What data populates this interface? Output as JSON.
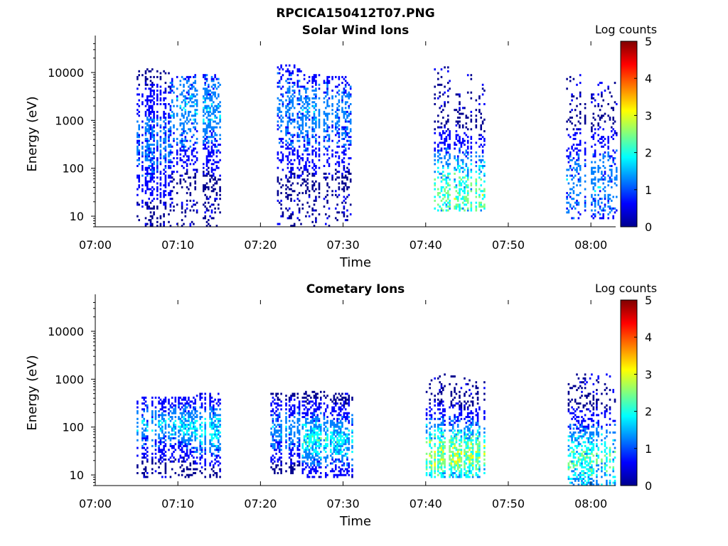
{
  "figure_title": "RPCICA150412T07.PNG",
  "colormap": [
    "#00008f",
    "#0000ff",
    "#0080ff",
    "#00ffff",
    "#80ff80",
    "#ffff00",
    "#ff8000",
    "#ff0000",
    "#800000"
  ],
  "chart_data": [
    {
      "type": "heatmap",
      "title": "Solar Wind Ions",
      "xlabel": "Time",
      "ylabel": "Energy (eV)",
      "y_scale": "log",
      "ylim": [
        6,
        45000
      ],
      "xlim": [
        "07:00",
        "08:03"
      ],
      "x_tick_labels": [
        "07:00",
        "07:10",
        "07:20",
        "07:30",
        "07:40",
        "07:50",
        "08:00"
      ],
      "y_tick_labels": [
        "10",
        "100",
        "1000",
        "10000"
      ],
      "y_tick_values": [
        10,
        100,
        1000,
        10000
      ],
      "colorbar": {
        "label": "Log counts",
        "range": [
          0,
          5
        ],
        "tick_labels": [
          "0",
          "1",
          "2",
          "3",
          "4",
          "5"
        ]
      },
      "clusters": [
        {
          "t_start": "07:05",
          "t_end": "07:09",
          "e_min": 6,
          "e_max": 12000,
          "peak_energy": 300,
          "peak_log_counts": 1.3,
          "density": 0.55
        },
        {
          "t_start": "07:09",
          "t_end": "07:12",
          "e_min": 6,
          "e_max": 8000,
          "peak_energy": 1500,
          "peak_log_counts": 1.6,
          "density": 0.4
        },
        {
          "t_start": "07:12",
          "t_end": "07:15",
          "e_min": 6,
          "e_max": 9000,
          "peak_energy": 1500,
          "peak_log_counts": 1.6,
          "density": 0.45
        },
        {
          "t_start": "07:22",
          "t_end": "07:25",
          "e_min": 6,
          "e_max": 14000,
          "peak_energy": 1500,
          "peak_log_counts": 1.4,
          "density": 0.4
        },
        {
          "t_start": "07:25",
          "t_end": "07:28",
          "e_min": 6,
          "e_max": 9000,
          "peak_energy": 1300,
          "peak_log_counts": 1.5,
          "density": 0.45
        },
        {
          "t_start": "07:28",
          "t_end": "07:31",
          "e_min": 6,
          "e_max": 8000,
          "peak_energy": 1300,
          "peak_log_counts": 1.4,
          "density": 0.45
        },
        {
          "t_start": "07:41",
          "t_end": "07:44",
          "e_min": 12,
          "e_max": 13000,
          "peak_energy": 25,
          "peak_log_counts": 2.6,
          "density": 0.45
        },
        {
          "t_start": "07:44",
          "t_end": "07:47",
          "e_min": 12,
          "e_max": 9000,
          "peak_energy": 25,
          "peak_log_counts": 2.6,
          "density": 0.45
        },
        {
          "t_start": "07:57",
          "t_end": "08:03",
          "e_min": 8,
          "e_max": 9000,
          "peak_energy": 40,
          "peak_log_counts": 1.5,
          "density": 0.35
        }
      ]
    },
    {
      "type": "heatmap",
      "title": "Cometary Ions",
      "xlabel": "Time",
      "ylabel": "Energy (eV)",
      "y_scale": "log",
      "ylim": [
        6,
        45000
      ],
      "xlim": [
        "07:00",
        "08:03"
      ],
      "x_tick_labels": [
        "07:00",
        "07:10",
        "07:20",
        "07:30",
        "07:40",
        "07:50",
        "08:00"
      ],
      "y_tick_labels": [
        "10",
        "100",
        "1000",
        "10000"
      ],
      "y_tick_values": [
        10,
        100,
        1000,
        10000
      ],
      "colorbar": {
        "label": "Log counts",
        "range": [
          0,
          5
        ],
        "tick_labels": [
          "0",
          "1",
          "2",
          "3",
          "4",
          "5"
        ]
      },
      "clusters": [
        {
          "t_start": "07:05",
          "t_end": "07:09",
          "e_min": 8,
          "e_max": 400,
          "peak_energy": 100,
          "peak_log_counts": 1.6,
          "density": 0.55
        },
        {
          "t_start": "07:09",
          "t_end": "07:12",
          "e_min": 8,
          "e_max": 400,
          "peak_energy": 100,
          "peak_log_counts": 1.8,
          "density": 0.6
        },
        {
          "t_start": "07:12",
          "t_end": "07:15",
          "e_min": 8,
          "e_max": 500,
          "peak_energy": 80,
          "peak_log_counts": 2.0,
          "density": 0.6
        },
        {
          "t_start": "07:21",
          "t_end": "07:25",
          "e_min": 10,
          "e_max": 500,
          "peak_energy": 80,
          "peak_log_counts": 1.5,
          "density": 0.55
        },
        {
          "t_start": "07:25",
          "t_end": "07:28",
          "e_min": 8,
          "e_max": 550,
          "peak_energy": 50,
          "peak_log_counts": 2.2,
          "density": 0.65
        },
        {
          "t_start": "07:28",
          "t_end": "07:31",
          "e_min": 8,
          "e_max": 500,
          "peak_energy": 50,
          "peak_log_counts": 2.0,
          "density": 0.6
        },
        {
          "t_start": "07:40",
          "t_end": "07:44",
          "e_min": 8,
          "e_max": 1300,
          "peak_energy": 25,
          "peak_log_counts": 3.0,
          "density": 0.65
        },
        {
          "t_start": "07:44",
          "t_end": "07:47",
          "e_min": 8,
          "e_max": 1000,
          "peak_energy": 25,
          "peak_log_counts": 2.9,
          "density": 0.65
        },
        {
          "t_start": "07:57",
          "t_end": "08:03",
          "e_min": 6,
          "e_max": 1300,
          "peak_energy": 20,
          "peak_log_counts": 2.4,
          "density": 0.5
        }
      ]
    }
  ]
}
